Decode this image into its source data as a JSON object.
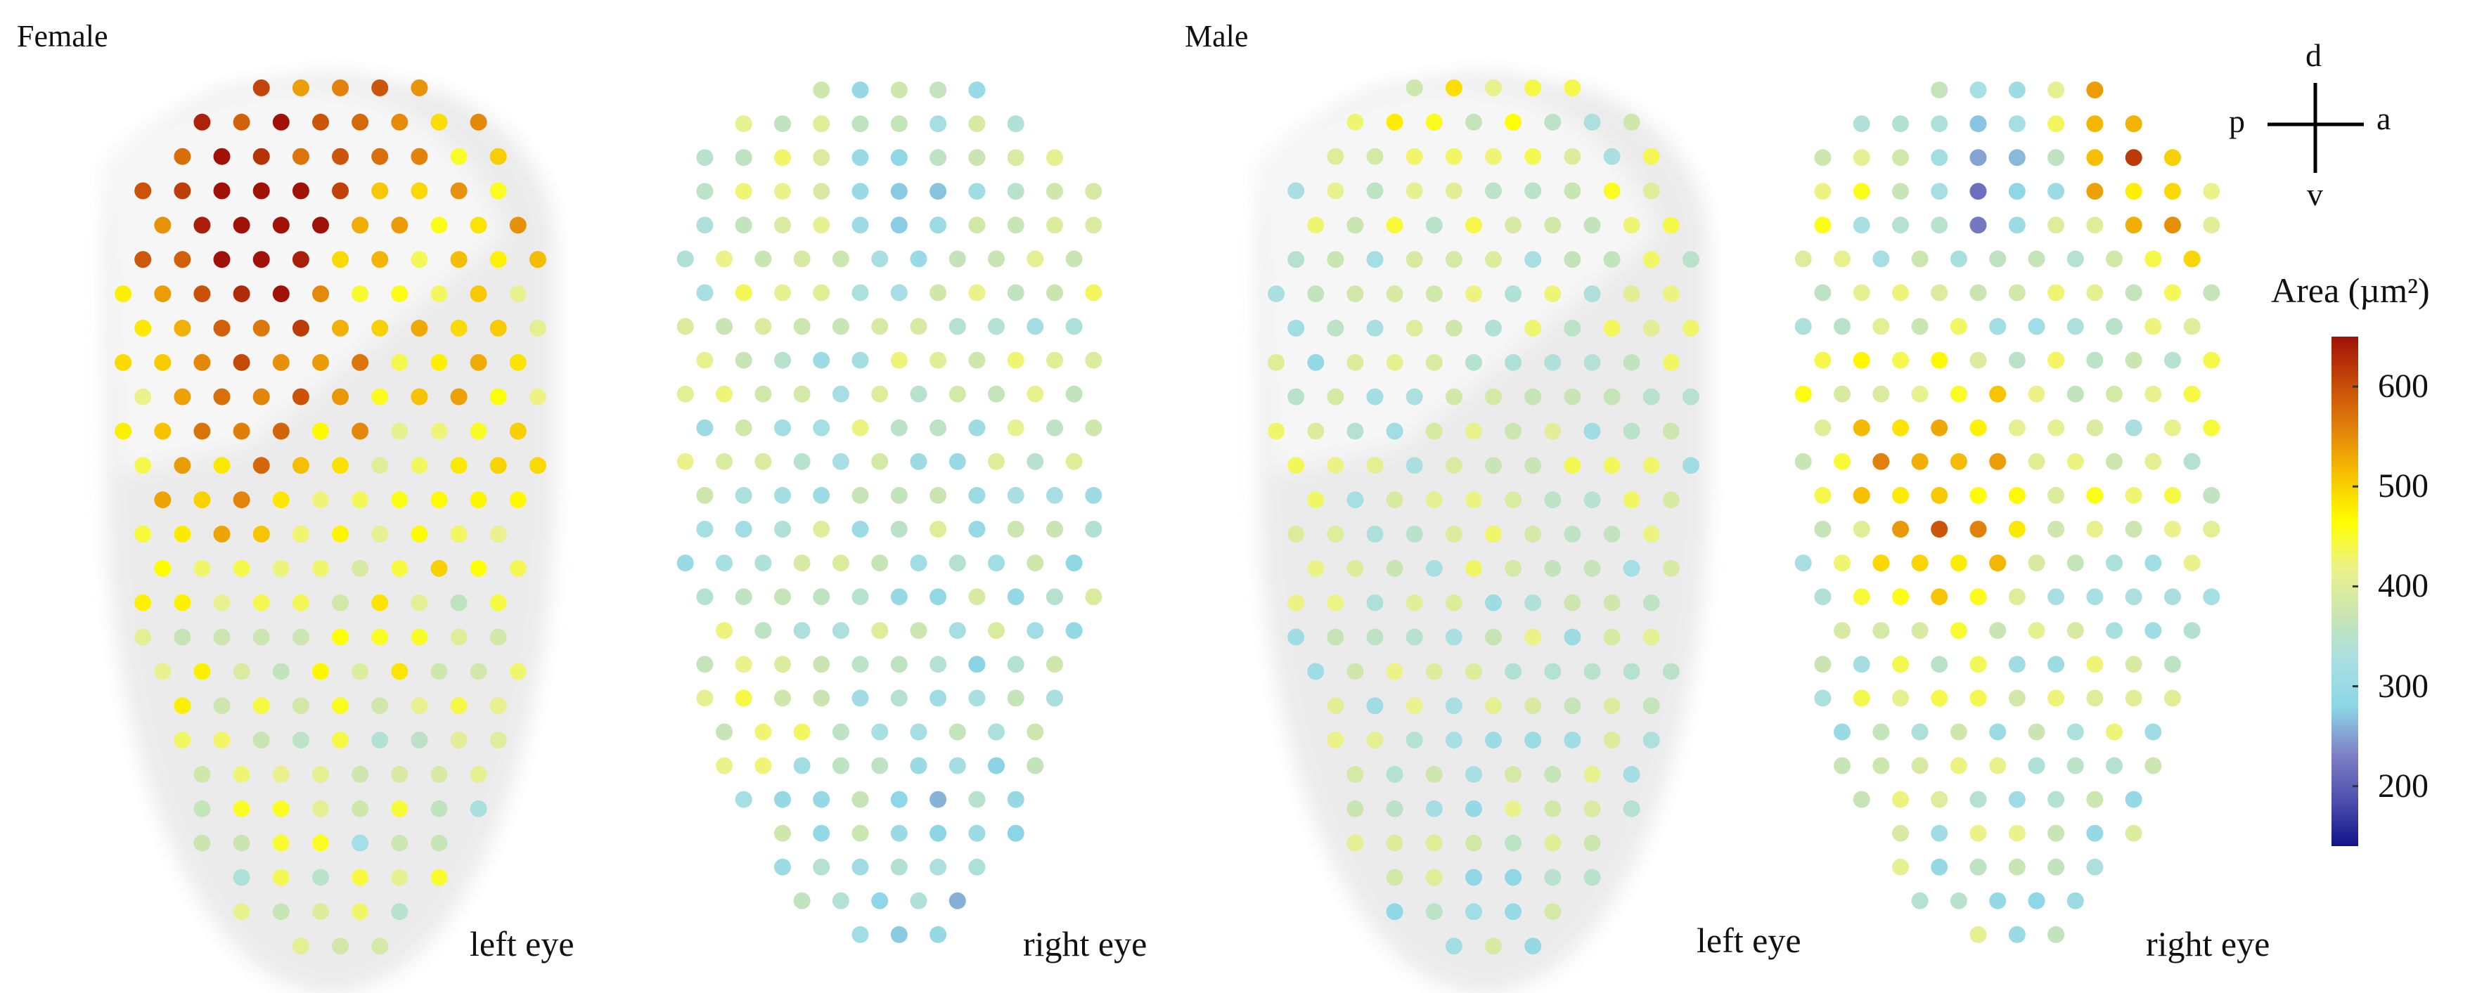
{
  "panels": {
    "female_title": "Female",
    "male_title": "Male",
    "eyes": [
      {
        "label": "left eye",
        "base_area": 440,
        "gradient": 6,
        "noise": 70,
        "hotspots": [
          {
            "u": 0.28,
            "v": 0.16,
            "strength": 200
          },
          {
            "u": 0.35,
            "v": 0.4,
            "strength": 90
          }
        ]
      },
      {
        "label": "right eye",
        "base_area": 350,
        "gradient": 4,
        "noise": 60,
        "hotspots": [
          {
            "u": 0.55,
            "v": 0.08,
            "strength": -90
          },
          {
            "u": 0.2,
            "v": 0.7,
            "strength": 70
          }
        ]
      },
      {
        "label": "left eye",
        "base_area": 370,
        "gradient": 2,
        "noise": 65,
        "hotspots": [
          {
            "u": 0.3,
            "v": 0.12,
            "strength": 90
          },
          {
            "u": 0.25,
            "v": 0.22,
            "strength": -80
          }
        ]
      },
      {
        "label": "right eye",
        "base_area": 380,
        "gradient": 3,
        "noise": 70,
        "hotspots": [
          {
            "u": 0.35,
            "v": 0.47,
            "strength": 170
          },
          {
            "u": 0.78,
            "v": 0.08,
            "strength": 180
          },
          {
            "u": 0.5,
            "v": 0.12,
            "strength": -170
          }
        ]
      }
    ]
  },
  "compass": {
    "d": "d",
    "p": "p",
    "a": "a",
    "v": "v"
  },
  "colorbar": {
    "title": "Area (µm²)",
    "min": 140,
    "max": 650,
    "ticks": [
      200,
      300,
      400,
      500,
      600
    ],
    "tick_labels": [
      "200",
      "300",
      "400",
      "500",
      "600"
    ],
    "colors": [
      "#11138a",
      "#4f50ad",
      "#7f82c7",
      "#8cd6e6",
      "#a8dfe3",
      "#c9e5b2",
      "#ecf28a",
      "#ffff00",
      "#f7c200",
      "#e2820b",
      "#c54a08",
      "#a01208"
    ]
  },
  "colors": {
    "shadow": "#ebebeb",
    "background": "#ffffff"
  }
}
